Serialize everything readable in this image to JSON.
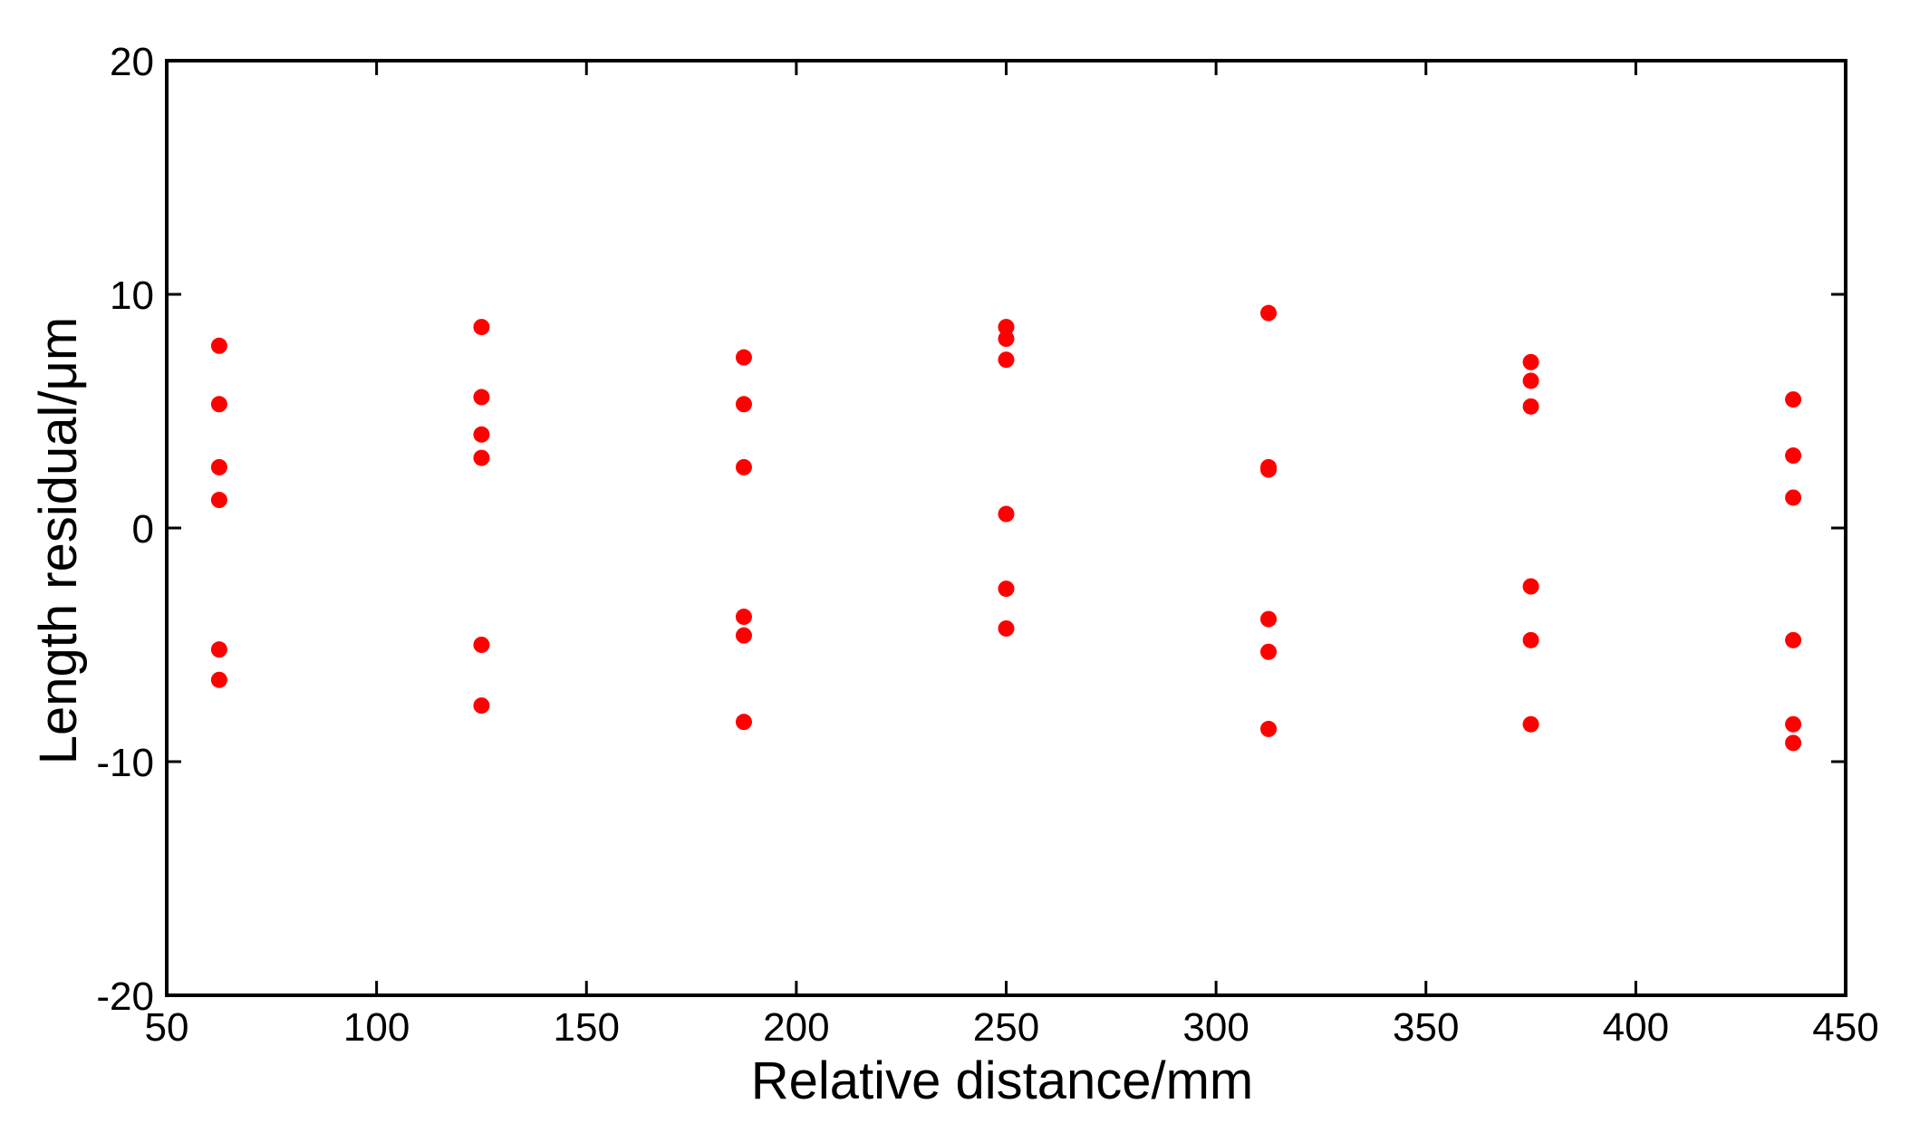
{
  "chart_data": {
    "type": "scatter",
    "title": "",
    "xlabel": "Relative distance/mm",
    "ylabel": "Length residual/μm",
    "xlim": [
      50,
      450
    ],
    "ylim": [
      -20,
      20
    ],
    "xticks": [
      50,
      100,
      150,
      200,
      250,
      300,
      350,
      400,
      450
    ],
    "yticks": [
      -20,
      -10,
      0,
      10,
      20
    ],
    "grid": false,
    "legend": "none",
    "marker_color": "#ff0000",
    "axis_color": "#000000",
    "points": [
      {
        "x": 62.5,
        "y": 7.8
      },
      {
        "x": 62.5,
        "y": 5.3
      },
      {
        "x": 62.5,
        "y": 2.6
      },
      {
        "x": 62.5,
        "y": 1.2
      },
      {
        "x": 62.5,
        "y": -5.2
      },
      {
        "x": 62.5,
        "y": -6.5
      },
      {
        "x": 125,
        "y": 8.6
      },
      {
        "x": 125,
        "y": 5.6
      },
      {
        "x": 125,
        "y": 4.0
      },
      {
        "x": 125,
        "y": 3.0
      },
      {
        "x": 125,
        "y": -5.0
      },
      {
        "x": 125,
        "y": -7.6
      },
      {
        "x": 187.5,
        "y": 7.3
      },
      {
        "x": 187.5,
        "y": 5.3
      },
      {
        "x": 187.5,
        "y": 2.6
      },
      {
        "x": 187.5,
        "y": -3.8
      },
      {
        "x": 187.5,
        "y": -4.6
      },
      {
        "x": 187.5,
        "y": -8.3
      },
      {
        "x": 250,
        "y": 8.6
      },
      {
        "x": 250,
        "y": 8.1
      },
      {
        "x": 250,
        "y": 7.2
      },
      {
        "x": 250,
        "y": 0.6
      },
      {
        "x": 250,
        "y": -2.6
      },
      {
        "x": 250,
        "y": -4.3
      },
      {
        "x": 312.5,
        "y": 9.2
      },
      {
        "x": 312.5,
        "y": 2.6
      },
      {
        "x": 312.5,
        "y": 2.5
      },
      {
        "x": 312.5,
        "y": -3.9
      },
      {
        "x": 312.5,
        "y": -5.3
      },
      {
        "x": 312.5,
        "y": -8.6
      },
      {
        "x": 375,
        "y": 7.1
      },
      {
        "x": 375,
        "y": 6.3
      },
      {
        "x": 375,
        "y": 5.2
      },
      {
        "x": 375,
        "y": -2.5
      },
      {
        "x": 375,
        "y": -4.8
      },
      {
        "x": 375,
        "y": -8.4
      },
      {
        "x": 437.5,
        "y": 5.5
      },
      {
        "x": 437.5,
        "y": 3.1
      },
      {
        "x": 437.5,
        "y": 1.3
      },
      {
        "x": 437.5,
        "y": -4.8
      },
      {
        "x": 437.5,
        "y": -8.4
      },
      {
        "x": 437.5,
        "y": -9.2
      }
    ]
  }
}
